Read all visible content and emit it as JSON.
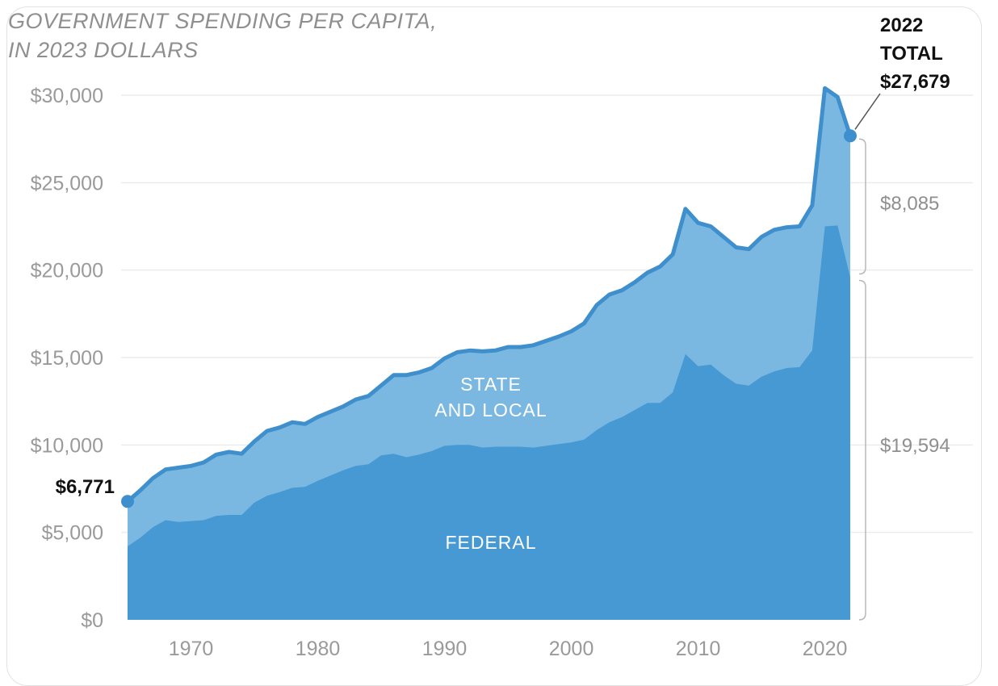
{
  "chart_data": {
    "type": "area",
    "title": [
      "GOVERNMENT SPENDING PER CAPITA,",
      "IN 2023 DOLLARS"
    ],
    "y_ticks": [
      "$0",
      "$5,000",
      "$10,000",
      "$15,000",
      "$20,000",
      "$25,000",
      "$30,000"
    ],
    "x_ticks": [
      "1970",
      "1980",
      "1990",
      "2000",
      "2010",
      "2020"
    ],
    "ylim": [
      0,
      30000
    ],
    "xlim": [
      1965,
      2022
    ],
    "grid": true,
    "x": [
      1965,
      1966,
      1967,
      1968,
      1969,
      1970,
      1971,
      1972,
      1973,
      1974,
      1975,
      1976,
      1977,
      1978,
      1979,
      1980,
      1981,
      1982,
      1983,
      1984,
      1985,
      1986,
      1987,
      1988,
      1989,
      1990,
      1991,
      1992,
      1993,
      1994,
      1995,
      1996,
      1997,
      1998,
      1999,
      2000,
      2001,
      2002,
      2003,
      2004,
      2005,
      2006,
      2007,
      2008,
      2009,
      2010,
      2011,
      2012,
      2013,
      2014,
      2015,
      2016,
      2017,
      2018,
      2019,
      2020,
      2021,
      2022
    ],
    "series": [
      {
        "name": "FEDERAL",
        "color": "#4699d3",
        "values": [
          4200,
          4700,
          5300,
          5700,
          5600,
          5650,
          5700,
          5950,
          6000,
          6000,
          6700,
          7100,
          7300,
          7550,
          7600,
          7950,
          8250,
          8550,
          8800,
          8900,
          9400,
          9500,
          9300,
          9450,
          9650,
          9950,
          10000,
          10000,
          9850,
          9900,
          9900,
          9900,
          9850,
          9950,
          10050,
          10150,
          10300,
          10850,
          11300,
          11600,
          12000,
          12400,
          12400,
          13000,
          15200,
          14500,
          14600,
          14000,
          13500,
          13400,
          13900,
          14200,
          14400,
          14450,
          15400,
          22500,
          22550,
          19594
        ]
      },
      {
        "name": "STATE AND LOCAL",
        "color": "#7ab8e2",
        "values": [
          2571,
          2700,
          2800,
          2900,
          3100,
          3150,
          3300,
          3500,
          3600,
          3500,
          3500,
          3700,
          3700,
          3750,
          3600,
          3650,
          3650,
          3650,
          3800,
          3900,
          4000,
          4500,
          4700,
          4700,
          4750,
          5000,
          5300,
          5400,
          5500,
          5500,
          5700,
          5700,
          5850,
          6000,
          6150,
          6350,
          6650,
          7150,
          7300,
          7250,
          7300,
          7450,
          7800,
          7900,
          8300,
          8200,
          7900,
          7900,
          7800,
          7800,
          8000,
          8100,
          8050,
          8050,
          8300,
          7900,
          7350,
          8085
        ]
      }
    ],
    "total_color": "#3f8fcd",
    "annotations": {
      "start_value": "$6,771",
      "end_heading": [
        "2022",
        "TOTAL"
      ],
      "end_value": "$27,679",
      "state_local_2022": "$8,085",
      "federal_2022": "$19,594"
    },
    "area_labels": {
      "state_local": [
        "STATE",
        "AND LOCAL"
      ],
      "federal": "FEDERAL"
    }
  }
}
